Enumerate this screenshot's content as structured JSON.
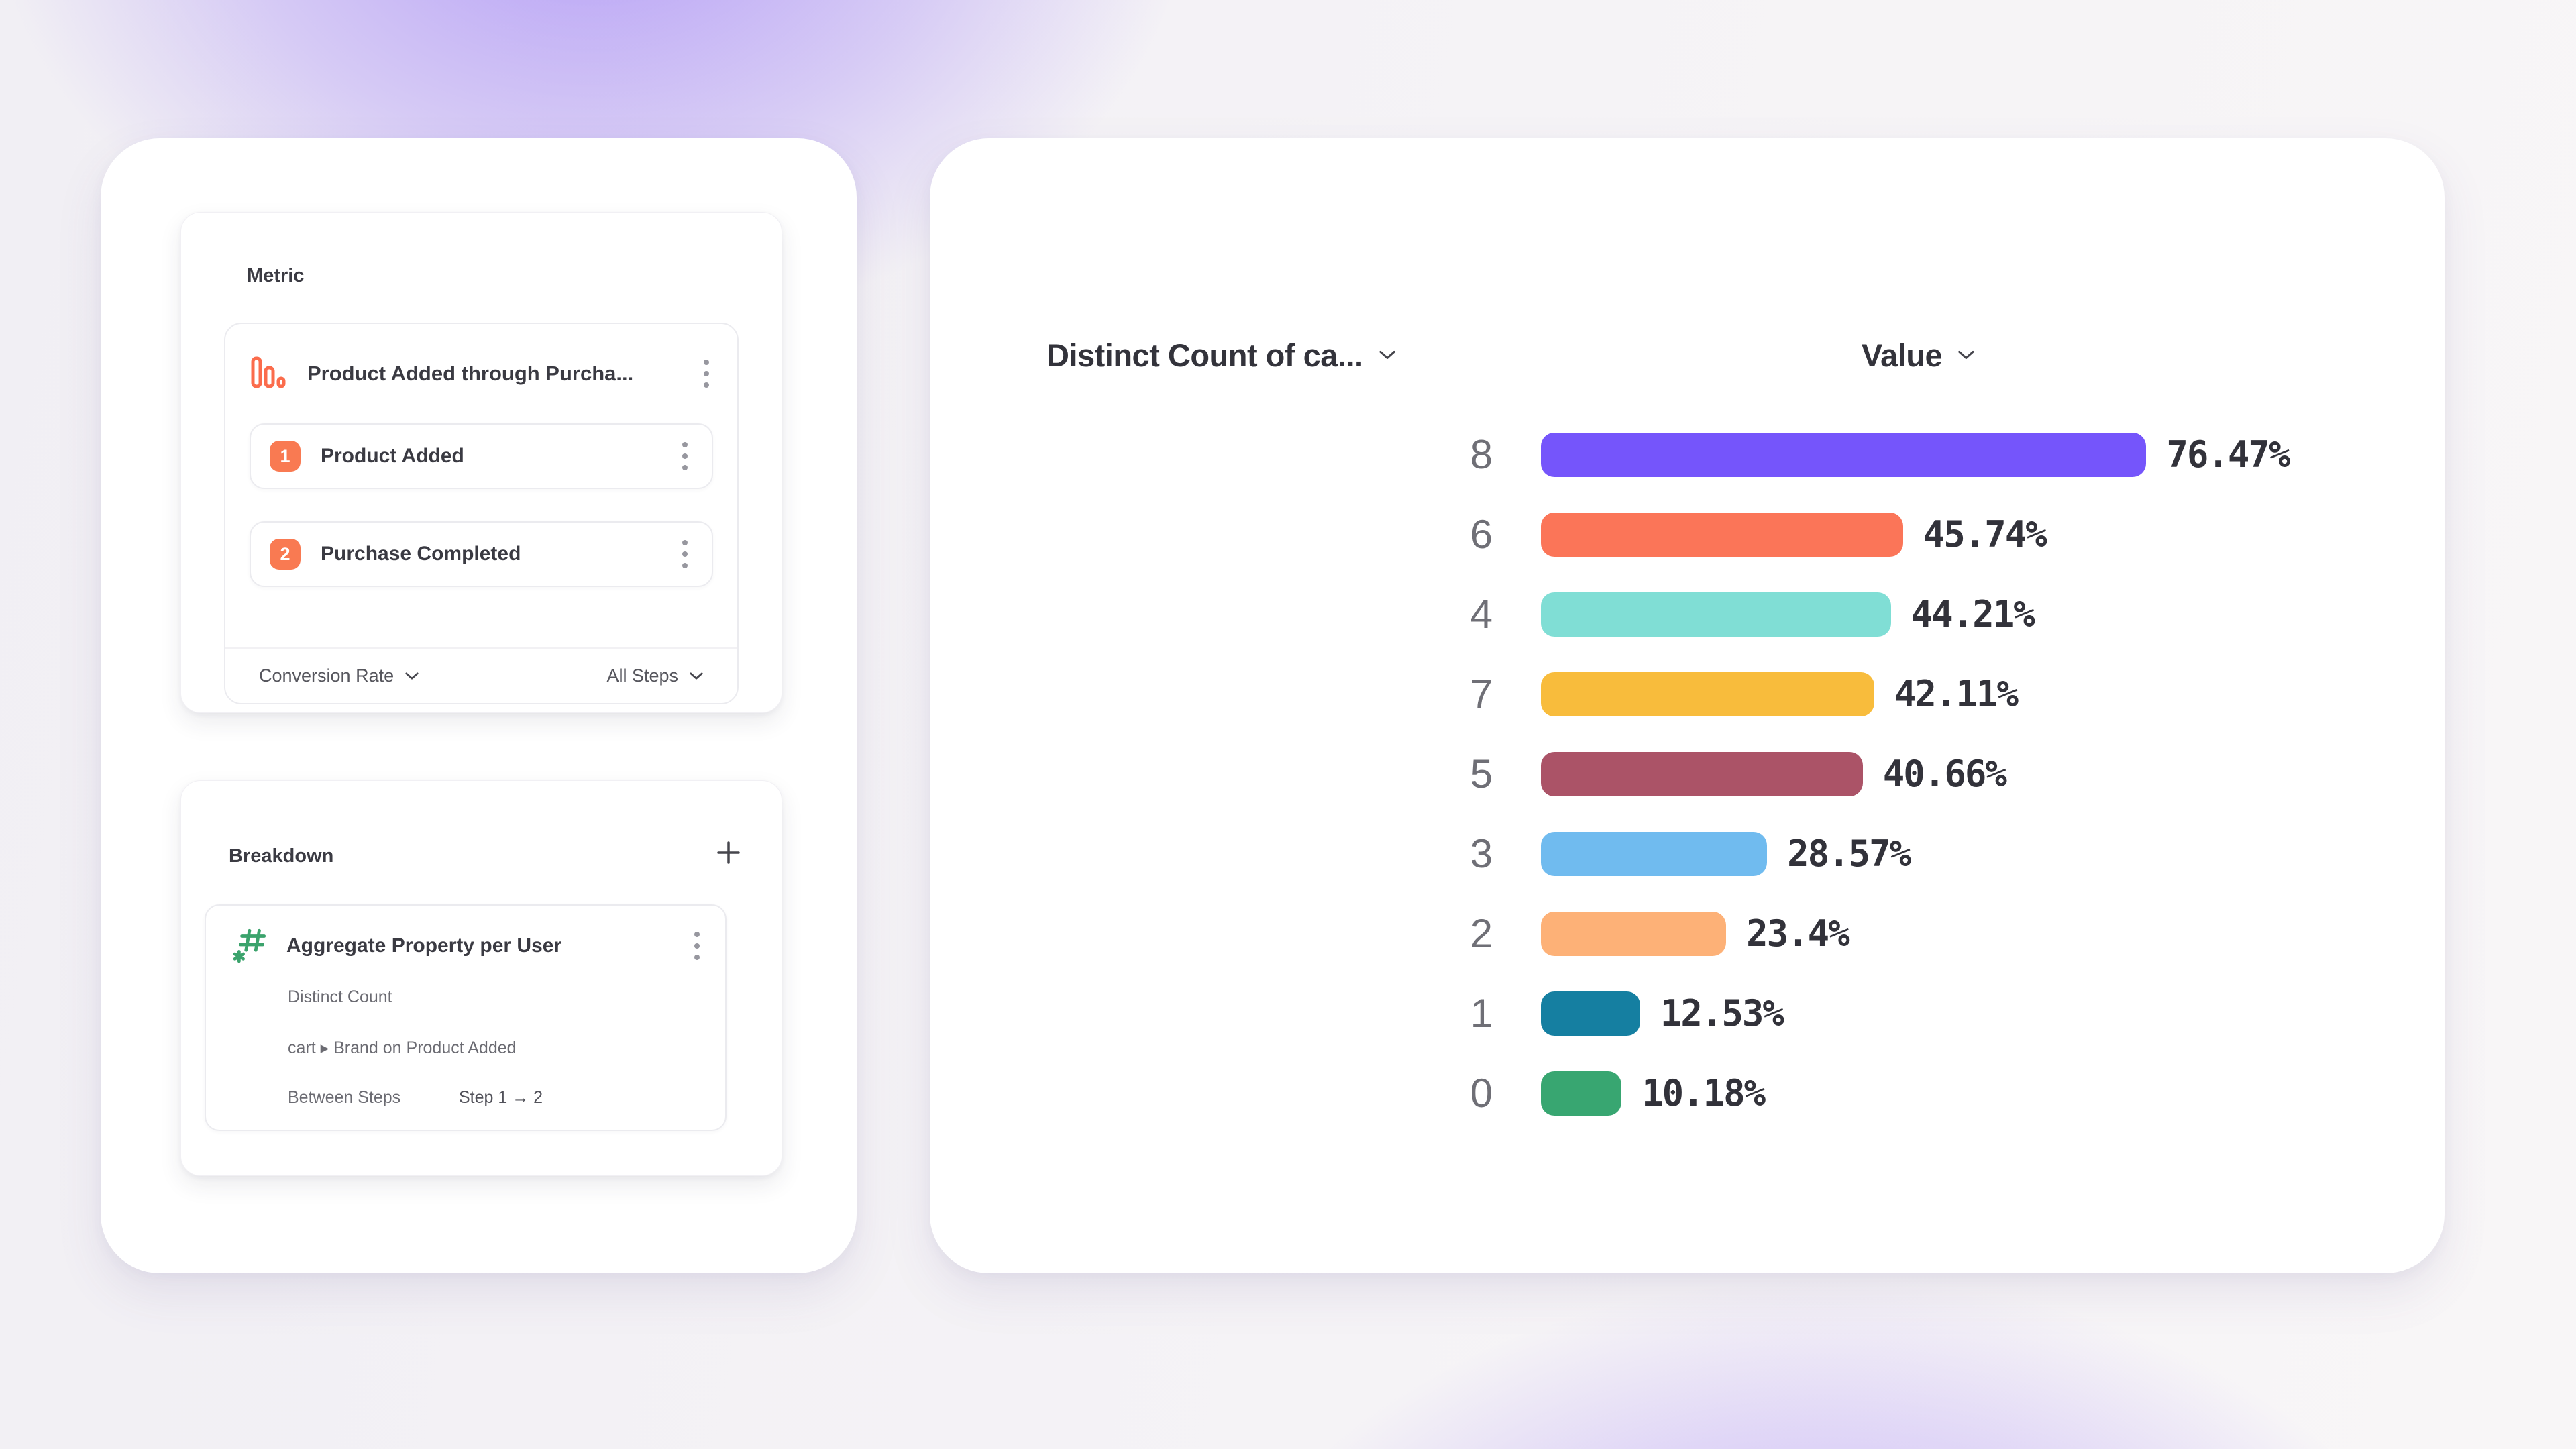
{
  "metric_panel": {
    "title": "Metric",
    "funnel": {
      "name": "Product Added through Purcha...",
      "icon": "funnel-bars-icon",
      "icon_color": "#FB6C4C",
      "badge_color": "#F97A52",
      "steps": [
        {
          "number": "1",
          "label": "Product Added"
        },
        {
          "number": "2",
          "label": "Purchase Completed"
        }
      ],
      "footer_left": "Conversion Rate",
      "footer_right": "All Steps"
    }
  },
  "breakdown_panel": {
    "title": "Breakdown",
    "add_icon": "plus-icon",
    "item": {
      "icon": "hash-asterisk-icon",
      "icon_color": "#3BA36C",
      "name": "Aggregate Property per User",
      "rows": [
        {
          "label": "Distinct Count"
        },
        {
          "label": "cart ▸ Brand on Product Added"
        },
        {
          "label": "Between Steps",
          "value": "Step 1 → 2"
        }
      ]
    }
  },
  "chart": {
    "col1_header": "Distinct Count of ca...",
    "col2_header": "Value"
  },
  "chart_data": {
    "type": "bar",
    "orientation": "horizontal",
    "title": "",
    "xlabel": "Value",
    "ylabel": "Distinct Count of cart Brand",
    "categories": [
      "8",
      "6",
      "4",
      "7",
      "5",
      "3",
      "2",
      "1",
      "0"
    ],
    "values": [
      76.47,
      45.74,
      44.21,
      42.11,
      40.66,
      28.57,
      23.4,
      12.53,
      10.18
    ],
    "labels": [
      "76.47%",
      "45.74%",
      "44.21%",
      "42.11%",
      "40.66%",
      "28.57%",
      "23.4%",
      "12.53%",
      "10.18%"
    ],
    "colors": [
      "#7555FB",
      "#FB7558",
      "#80DED5",
      "#F8BC3C",
      "#AB5367",
      "#70BBEF",
      "#FDB177",
      "#157FA1",
      "#38A671"
    ],
    "xlim": [
      0,
      100
    ],
    "grid": false,
    "legend": false
  }
}
